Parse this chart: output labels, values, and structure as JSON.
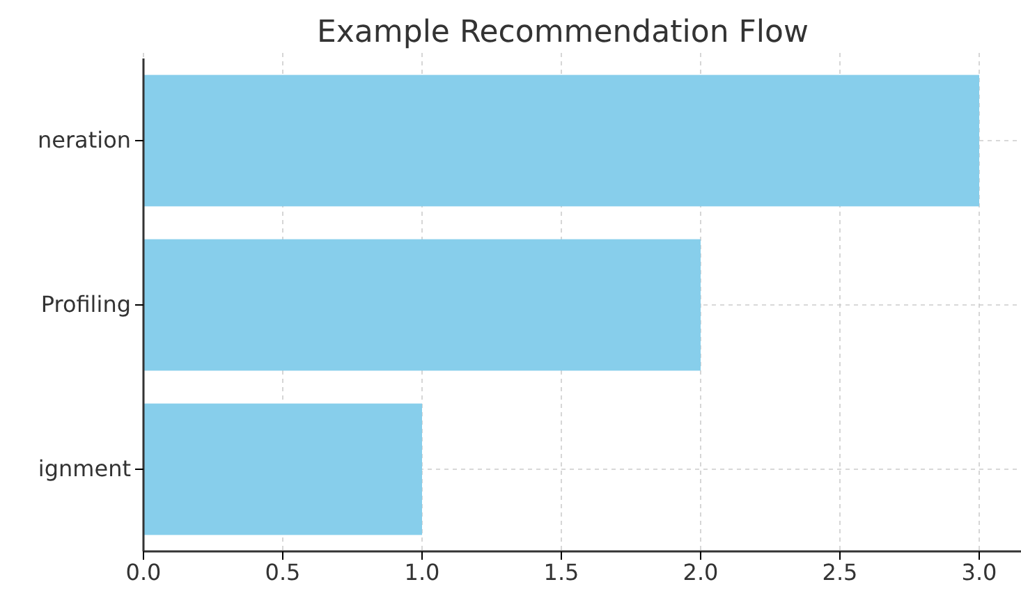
{
  "chart_data": {
    "type": "bar",
    "orientation": "horizontal",
    "title": "Example Recommendation Flow",
    "categories": [
      "neration",
      "Profiling",
      "ignment"
    ],
    "values": [
      3,
      2,
      1
    ],
    "color": "#87ceeb",
    "xlim": [
      0,
      3.15
    ],
    "xticks": [
      {
        "value": 0,
        "label": "0.0"
      },
      {
        "value": 0.5,
        "label": "0.5"
      },
      {
        "value": 1,
        "label": "1.0"
      },
      {
        "value": 1.5,
        "label": "1.5"
      },
      {
        "value": 2,
        "label": "2.0"
      },
      {
        "value": 2.5,
        "label": "2.5"
      },
      {
        "value": 3,
        "label": "3.0"
      }
    ],
    "grid": true
  }
}
